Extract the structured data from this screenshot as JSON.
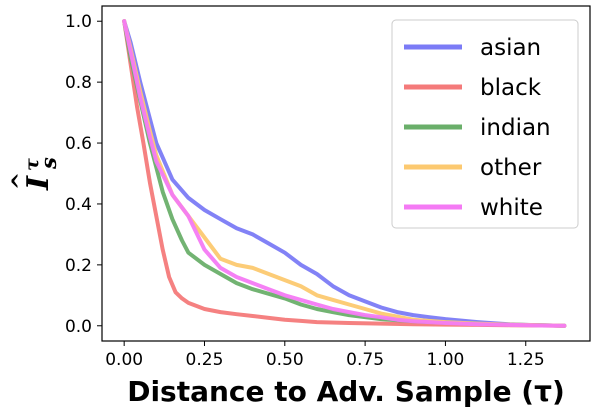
{
  "chart_data": {
    "type": "line",
    "xlabel": "Distance to Adv. Sample (τ)",
    "ylabel": "I_s^τ (hat)",
    "ylabel_parts": {
      "base": "I",
      "sub": "s",
      "sup": "τ",
      "hat": "^"
    },
    "xlim": [
      -0.069,
      1.45
    ],
    "ylim": [
      -0.05,
      1.05
    ],
    "xticks": [
      "0.00",
      "0.25",
      "0.50",
      "0.75",
      "1.00",
      "1.25"
    ],
    "xtick_values": [
      0,
      0.25,
      0.5,
      0.75,
      1.0,
      1.25
    ],
    "yticks": [
      "0.0",
      "0.2",
      "0.4",
      "0.6",
      "0.8",
      "1.0"
    ],
    "ytick_values": [
      0,
      0.2,
      0.4,
      0.6,
      0.8,
      1.0
    ],
    "grid": false,
    "legend_position": "top-right",
    "series": [
      {
        "name": "asian",
        "color": "#7b7bf6",
        "x": [
          0,
          0.02,
          0.05,
          0.08,
          0.1,
          0.15,
          0.2,
          0.25,
          0.3,
          0.35,
          0.4,
          0.45,
          0.5,
          0.55,
          0.6,
          0.65,
          0.7,
          0.75,
          0.8,
          0.85,
          0.9,
          0.95,
          1.0,
          1.05,
          1.1,
          1.15,
          1.2,
          1.25,
          1.3,
          1.37
        ],
        "y": [
          1.0,
          0.93,
          0.8,
          0.68,
          0.6,
          0.48,
          0.42,
          0.38,
          0.35,
          0.32,
          0.3,
          0.27,
          0.24,
          0.2,
          0.17,
          0.13,
          0.1,
          0.08,
          0.06,
          0.045,
          0.035,
          0.028,
          0.022,
          0.017,
          0.012,
          0.008,
          0.005,
          0.003,
          0.002,
          0.0
        ]
      },
      {
        "name": "black",
        "color": "#f47a7a",
        "x": [
          0,
          0.02,
          0.04,
          0.06,
          0.08,
          0.1,
          0.12,
          0.14,
          0.16,
          0.18,
          0.2,
          0.25,
          0.3,
          0.35,
          0.4,
          0.45,
          0.5,
          0.55,
          0.6,
          0.7,
          0.8,
          0.9,
          1.0,
          1.1,
          1.2,
          1.3,
          1.37
        ],
        "y": [
          1.0,
          0.86,
          0.72,
          0.6,
          0.47,
          0.36,
          0.25,
          0.16,
          0.11,
          0.09,
          0.075,
          0.055,
          0.045,
          0.038,
          0.032,
          0.026,
          0.02,
          0.016,
          0.012,
          0.009,
          0.007,
          0.005,
          0.004,
          0.003,
          0.002,
          0.001,
          0.0
        ]
      },
      {
        "name": "indian",
        "color": "#6aaf6a",
        "x": [
          0,
          0.02,
          0.05,
          0.08,
          0.1,
          0.12,
          0.15,
          0.18,
          0.2,
          0.25,
          0.3,
          0.35,
          0.4,
          0.45,
          0.5,
          0.55,
          0.6,
          0.65,
          0.7,
          0.8,
          0.9,
          1.0,
          1.1,
          1.2,
          1.3,
          1.37
        ],
        "y": [
          1.0,
          0.88,
          0.74,
          0.6,
          0.52,
          0.44,
          0.35,
          0.28,
          0.24,
          0.2,
          0.17,
          0.14,
          0.12,
          0.105,
          0.09,
          0.07,
          0.055,
          0.045,
          0.035,
          0.022,
          0.015,
          0.01,
          0.006,
          0.004,
          0.002,
          0.0
        ]
      },
      {
        "name": "other",
        "color": "#fcc970",
        "x": [
          0,
          0.02,
          0.05,
          0.08,
          0.1,
          0.15,
          0.2,
          0.25,
          0.3,
          0.35,
          0.4,
          0.45,
          0.5,
          0.55,
          0.6,
          0.65,
          0.7,
          0.75,
          0.8,
          0.85,
          0.9,
          1.0,
          1.1,
          1.2,
          1.3,
          1.37
        ],
        "y": [
          1.0,
          0.91,
          0.77,
          0.64,
          0.56,
          0.43,
          0.36,
          0.29,
          0.22,
          0.2,
          0.19,
          0.17,
          0.15,
          0.13,
          0.1,
          0.085,
          0.07,
          0.055,
          0.04,
          0.03,
          0.02,
          0.012,
          0.007,
          0.004,
          0.002,
          0.0
        ]
      },
      {
        "name": "white",
        "color": "#f47af4",
        "x": [
          0,
          0.02,
          0.05,
          0.08,
          0.1,
          0.15,
          0.2,
          0.25,
          0.3,
          0.35,
          0.4,
          0.45,
          0.5,
          0.55,
          0.6,
          0.65,
          0.7,
          0.75,
          0.8,
          0.85,
          0.9,
          1.0,
          1.1,
          1.2,
          1.3,
          1.37
        ],
        "y": [
          1.0,
          0.9,
          0.75,
          0.62,
          0.54,
          0.43,
          0.36,
          0.25,
          0.19,
          0.16,
          0.14,
          0.12,
          0.1,
          0.085,
          0.07,
          0.055,
          0.045,
          0.035,
          0.028,
          0.02,
          0.015,
          0.009,
          0.005,
          0.003,
          0.001,
          0.0
        ]
      }
    ]
  }
}
